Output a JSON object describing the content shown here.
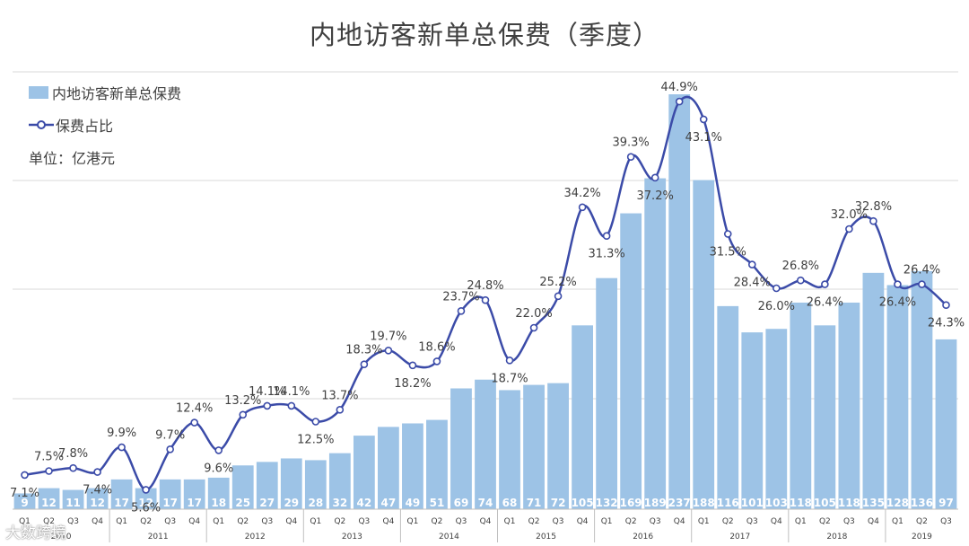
{
  "title": "内地访客新单总保费（季度）",
  "legend": {
    "bar_label": "内地访客新单总保费",
    "line_label": "保费占比",
    "unit": "单位：亿港元"
  },
  "watermark": "大数跨境",
  "colors": {
    "bar": "#9dc3e6",
    "line": "#3b4ba8",
    "text": "#404040",
    "grid": "#d9d9d9",
    "bar_label": "#ffffff"
  },
  "chart_data": {
    "type": "bar",
    "title": "内地访客新单总保费（季度）",
    "quarters": [
      "Q1",
      "Q2",
      "Q3",
      "Q4",
      "Q1",
      "Q2",
      "Q3",
      "Q4",
      "Q1",
      "Q2",
      "Q3",
      "Q4",
      "Q1",
      "Q2",
      "Q3",
      "Q4",
      "Q1",
      "Q2",
      "Q3",
      "Q4",
      "Q1",
      "Q2",
      "Q3",
      "Q4",
      "Q1",
      "Q2",
      "Q3",
      "Q4",
      "Q1",
      "Q2",
      "Q3",
      "Q4",
      "Q1",
      "Q2",
      "Q3",
      "Q4",
      "Q1",
      "Q2",
      "Q3"
    ],
    "years": [
      {
        "label": "2010",
        "count": 4
      },
      {
        "label": "2011",
        "count": 4
      },
      {
        "label": "2012",
        "count": 4
      },
      {
        "label": "2013",
        "count": 4
      },
      {
        "label": "2014",
        "count": 4
      },
      {
        "label": "2015",
        "count": 4
      },
      {
        "label": "2016",
        "count": 4
      },
      {
        "label": "2017",
        "count": 4
      },
      {
        "label": "2018",
        "count": 4
      },
      {
        "label": "2019",
        "count": 3
      }
    ],
    "series": [
      {
        "name": "内地访客新单总保费",
        "type": "bar",
        "values": [
          9,
          12,
          11,
          12,
          17,
          12,
          17,
          17,
          18,
          25,
          27,
          29,
          28,
          32,
          42,
          47,
          49,
          51,
          69,
          74,
          68,
          71,
          72,
          105,
          132,
          169,
          189,
          237,
          188,
          116,
          101,
          103,
          118,
          105,
          118,
          135,
          128,
          136,
          97
        ]
      },
      {
        "name": "保费占比",
        "type": "line",
        "unit": "%",
        "values": [
          7.1,
          7.5,
          7.8,
          7.4,
          9.9,
          5.6,
          9.7,
          12.4,
          9.6,
          13.2,
          14.1,
          14.1,
          12.5,
          13.7,
          18.3,
          19.7,
          18.2,
          18.6,
          23.7,
          24.8,
          18.7,
          22.0,
          25.2,
          34.2,
          31.3,
          39.3,
          37.2,
          44.9,
          43.1,
          31.5,
          28.4,
          26.0,
          26.8,
          26.4,
          32.0,
          32.8,
          26.4,
          26.4,
          24.3
        ]
      }
    ],
    "bar_ylim": [
      0,
      300
    ],
    "line_ylim": [
      -5,
      50
    ],
    "grid": true
  }
}
